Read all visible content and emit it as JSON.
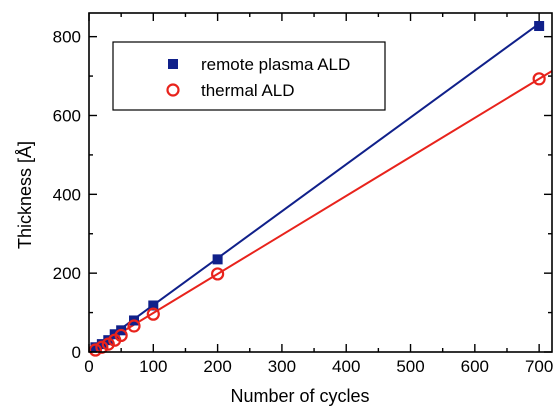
{
  "chart_data": {
    "type": "scatter",
    "title": "",
    "xlabel": "Number of cycles",
    "ylabel": "Thickness [Å]",
    "xlim": [
      0,
      720
    ],
    "ylim": [
      0,
      860
    ],
    "xticks": [
      0,
      100,
      200,
      300,
      400,
      500,
      600,
      700
    ],
    "yticks": [
      0,
      200,
      400,
      600,
      800
    ],
    "x_minor_step": 50,
    "y_minor_step": 100,
    "grid": false,
    "legend": "top-left",
    "series": [
      {
        "name": "remote plasma ALD",
        "marker": "filled-square",
        "color": "#10208a",
        "points": [
          [
            10,
            12
          ],
          [
            20,
            20
          ],
          [
            30,
            30
          ],
          [
            40,
            45
          ],
          [
            50,
            55
          ],
          [
            70,
            80
          ],
          [
            100,
            118
          ],
          [
            200,
            235
          ],
          [
            700,
            827
          ]
        ],
        "fit": {
          "slope": 1.19,
          "intercept": 0,
          "x_range": [
            0,
            700
          ]
        }
      },
      {
        "name": "thermal ALD",
        "marker": "open-circle",
        "color": "#e8231c",
        "points": [
          [
            10,
            5
          ],
          [
            20,
            12
          ],
          [
            30,
            20
          ],
          [
            40,
            30
          ],
          [
            50,
            42
          ],
          [
            70,
            66
          ],
          [
            100,
            96
          ],
          [
            200,
            198
          ],
          [
            700,
            693
          ]
        ],
        "fit": {
          "slope": 0.99,
          "intercept": 0,
          "x_range": [
            0,
            720
          ]
        }
      }
    ]
  }
}
